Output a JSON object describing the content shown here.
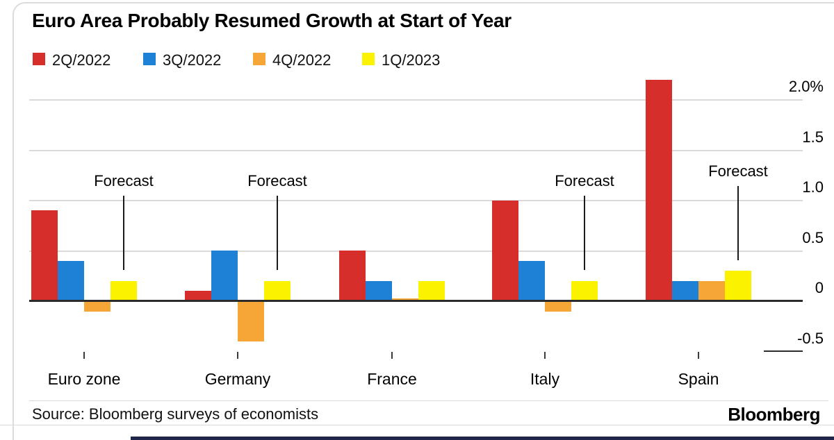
{
  "card": {
    "brand": "Bloomberg"
  },
  "source": "Source: Bloomberg surveys of economists",
  "forecast_label": "Forecast",
  "chart_data": {
    "type": "bar",
    "title": "Euro Area Probably Resumed Growth at Start of Year",
    "unit": "%",
    "categories": [
      "Euro zone",
      "Germany",
      "France",
      "Italy",
      "Spain"
    ],
    "series": [
      {
        "name": "2Q/2022",
        "color": "#d62e2a",
        "values": [
          0.9,
          0.1,
          0.5,
          1.0,
          2.2
        ]
      },
      {
        "name": "3Q/2022",
        "color": "#1e81d6",
        "values": [
          0.4,
          0.5,
          0.2,
          0.4,
          0.2
        ]
      },
      {
        "name": "4Q/2022",
        "color": "#f6a636",
        "values": [
          -0.1,
          -0.4,
          0.0,
          -0.1,
          0.2
        ]
      },
      {
        "name": "1Q/2023",
        "color": "#fbf200",
        "values": [
          0.2,
          0.2,
          0.2,
          0.2,
          0.3
        ]
      }
    ],
    "forecast_annotation": {
      "label": "Forecast",
      "categories": [
        "Euro zone",
        "Germany",
        "Italy",
        "Spain"
      ],
      "applies_to_series": "1Q/2023"
    },
    "y_axis": {
      "side": "right",
      "ylim": [
        -0.6,
        2.3
      ],
      "grid": true,
      "ticks": [
        {
          "value": 2.0,
          "label": "2.0%"
        },
        {
          "value": 1.5,
          "label": "1.5"
        },
        {
          "value": 1.0,
          "label": "1.0"
        },
        {
          "value": 0.5,
          "label": "0.5"
        },
        {
          "value": 0,
          "label": "0"
        },
        {
          "value": -0.5,
          "label": "-0.5"
        }
      ]
    },
    "legend_position": "top"
  }
}
